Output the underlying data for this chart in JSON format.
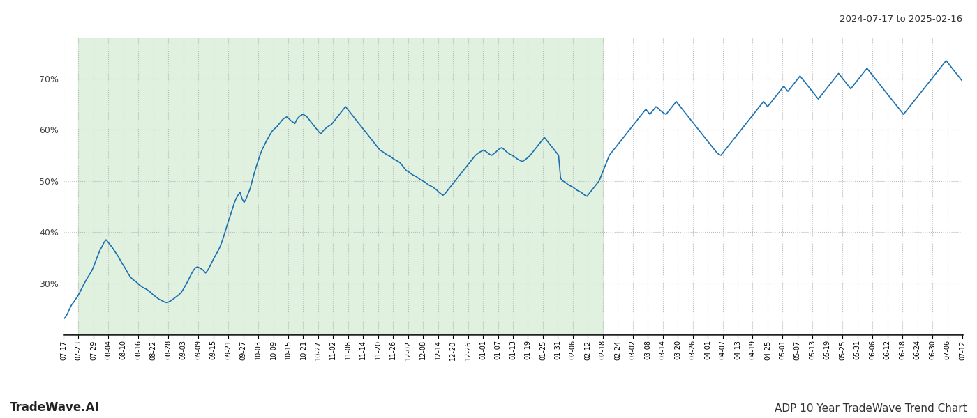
{
  "title_top_right": "2024-07-17 to 2025-02-16",
  "title_bottom_left": "TradeWave.AI",
  "title_bottom_right": "ADP 10 Year TradeWave Trend Chart",
  "line_color": "#1a6faf",
  "line_width": 1.2,
  "shade_color": "#c8e6c8",
  "shade_alpha": 0.55,
  "background_color": "#ffffff",
  "grid_color": "#bbbbbb",
  "grid_style": ":",
  "ylim": [
    20,
    78
  ],
  "yticks": [
    30,
    40,
    50,
    60,
    70
  ],
  "x_labels": [
    "07-17",
    "07-23",
    "07-29",
    "08-04",
    "08-10",
    "08-16",
    "08-22",
    "08-28",
    "09-03",
    "09-09",
    "09-15",
    "09-21",
    "09-27",
    "10-03",
    "10-09",
    "10-15",
    "10-21",
    "10-27",
    "11-02",
    "11-08",
    "11-14",
    "11-20",
    "11-26",
    "12-02",
    "12-08",
    "12-14",
    "12-20",
    "12-26",
    "01-01",
    "01-07",
    "01-13",
    "01-19",
    "01-25",
    "01-31",
    "02-06",
    "02-12",
    "02-18",
    "02-24",
    "03-02",
    "03-08",
    "03-14",
    "03-20",
    "03-26",
    "04-01",
    "04-07",
    "04-13",
    "04-19",
    "04-25",
    "05-01",
    "05-07",
    "05-13",
    "05-19",
    "05-25",
    "05-31",
    "06-06",
    "06-12",
    "06-18",
    "06-24",
    "06-30",
    "07-06",
    "07-12"
  ],
  "shade_end_label": "02-18",
  "y_data": [
    23.0,
    23.4,
    24.1,
    25.0,
    25.8,
    26.3,
    26.9,
    27.5,
    28.2,
    29.0,
    29.8,
    30.5,
    31.2,
    31.8,
    32.5,
    33.4,
    34.5,
    35.5,
    36.5,
    37.2,
    38.0,
    38.5,
    38.0,
    37.5,
    37.0,
    36.4,
    35.8,
    35.2,
    34.5,
    33.8,
    33.2,
    32.5,
    31.8,
    31.2,
    30.8,
    30.5,
    30.2,
    29.8,
    29.5,
    29.2,
    29.0,
    28.8,
    28.5,
    28.2,
    27.8,
    27.5,
    27.2,
    26.9,
    26.7,
    26.5,
    26.3,
    26.2,
    26.4,
    26.6,
    26.9,
    27.2,
    27.5,
    27.8,
    28.2,
    28.8,
    29.5,
    30.2,
    31.0,
    31.8,
    32.5,
    33.0,
    33.2,
    33.0,
    32.8,
    32.5,
    32.0,
    32.5,
    33.2,
    34.0,
    34.8,
    35.5,
    36.2,
    37.0,
    38.0,
    39.2,
    40.5,
    41.8,
    43.0,
    44.2,
    45.5,
    46.5,
    47.2,
    47.8,
    46.5,
    45.8,
    46.5,
    47.5,
    48.5,
    50.0,
    51.5,
    52.8,
    54.0,
    55.2,
    56.2,
    57.0,
    57.8,
    58.5,
    59.2,
    59.8,
    60.2,
    60.5,
    61.0,
    61.5,
    62.0,
    62.3,
    62.5,
    62.2,
    61.8,
    61.5,
    61.2,
    62.0,
    62.5,
    62.8,
    63.0,
    62.8,
    62.5,
    62.0,
    61.5,
    61.0,
    60.5,
    60.0,
    59.5,
    59.2,
    59.8,
    60.2,
    60.5,
    60.8,
    61.0,
    61.5,
    62.0,
    62.5,
    63.0,
    63.5,
    64.0,
    64.5,
    64.0,
    63.5,
    63.0,
    62.5,
    62.0,
    61.5,
    61.0,
    60.5,
    60.0,
    59.5,
    59.0,
    58.5,
    58.0,
    57.5,
    57.0,
    56.5,
    56.0,
    55.8,
    55.5,
    55.2,
    55.0,
    54.8,
    54.5,
    54.2,
    54.0,
    53.8,
    53.5,
    53.0,
    52.5,
    52.0,
    51.8,
    51.5,
    51.2,
    51.0,
    50.8,
    50.5,
    50.2,
    50.0,
    49.8,
    49.5,
    49.2,
    49.0,
    48.8,
    48.5,
    48.2,
    47.8,
    47.5,
    47.2,
    47.5,
    48.0,
    48.5,
    49.0,
    49.5,
    50.0,
    50.5,
    51.0,
    51.5,
    52.0,
    52.5,
    53.0,
    53.5,
    54.0,
    54.5,
    55.0,
    55.3,
    55.6,
    55.8,
    56.0,
    55.8,
    55.5,
    55.2,
    55.0,
    55.3,
    55.6,
    56.0,
    56.3,
    56.5,
    56.2,
    55.8,
    55.5,
    55.2,
    55.0,
    54.8,
    54.5,
    54.2,
    54.0,
    53.8,
    54.0,
    54.3,
    54.6,
    55.0,
    55.5,
    56.0,
    56.5,
    57.0,
    57.5,
    58.0,
    58.5,
    58.0,
    57.5,
    57.0,
    56.5,
    56.0,
    55.5,
    55.0,
    50.5,
    50.0,
    49.8,
    49.5,
    49.2,
    49.0,
    48.8,
    48.5,
    48.2,
    48.0,
    47.8,
    47.5,
    47.2,
    47.0,
    47.5,
    48.0,
    48.5,
    49.0,
    49.5,
    50.0,
    51.0,
    52.0,
    53.0,
    54.0,
    55.0,
    55.5,
    56.0,
    56.5,
    57.0,
    57.5,
    58.0,
    58.5,
    59.0,
    59.5,
    60.0,
    60.5,
    61.0,
    61.5,
    62.0,
    62.5,
    63.0,
    63.5,
    64.0,
    63.5,
    63.0,
    63.5,
    64.0,
    64.5,
    64.2,
    63.8,
    63.5,
    63.2,
    63.0,
    63.5,
    64.0,
    64.5,
    65.0,
    65.5,
    65.0,
    64.5,
    64.0,
    63.5,
    63.0,
    62.5,
    62.0,
    61.5,
    61.0,
    60.5,
    60.0,
    59.5,
    59.0,
    58.5,
    58.0,
    57.5,
    57.0,
    56.5,
    56.0,
    55.5,
    55.2,
    55.0,
    55.5,
    56.0,
    56.5,
    57.0,
    57.5,
    58.0,
    58.5,
    59.0,
    59.5,
    60.0,
    60.5,
    61.0,
    61.5,
    62.0,
    62.5,
    63.0,
    63.5,
    64.0,
    64.5,
    65.0,
    65.5,
    65.0,
    64.5,
    65.0,
    65.5,
    66.0,
    66.5,
    67.0,
    67.5,
    68.0,
    68.5,
    68.0,
    67.5,
    68.0,
    68.5,
    69.0,
    69.5,
    70.0,
    70.5,
    70.0,
    69.5,
    69.0,
    68.5,
    68.0,
    67.5,
    67.0,
    66.5,
    66.0,
    66.5,
    67.0,
    67.5,
    68.0,
    68.5,
    69.0,
    69.5,
    70.0,
    70.5,
    71.0,
    70.5,
    70.0,
    69.5,
    69.0,
    68.5,
    68.0,
    68.5,
    69.0,
    69.5,
    70.0,
    70.5,
    71.0,
    71.5,
    72.0,
    71.5,
    71.0,
    70.5,
    70.0,
    69.5,
    69.0,
    68.5,
    68.0,
    67.5,
    67.0,
    66.5,
    66.0,
    65.5,
    65.0,
    64.5,
    64.0,
    63.5,
    63.0,
    63.5,
    64.0,
    64.5,
    65.0,
    65.5,
    66.0,
    66.5,
    67.0,
    67.5,
    68.0,
    68.5,
    69.0,
    69.5,
    70.0,
    70.5,
    71.0,
    71.5,
    72.0,
    72.5,
    73.0,
    73.5,
    73.0,
    72.5,
    72.0,
    71.5,
    71.0,
    70.5,
    70.0,
    69.5
  ]
}
